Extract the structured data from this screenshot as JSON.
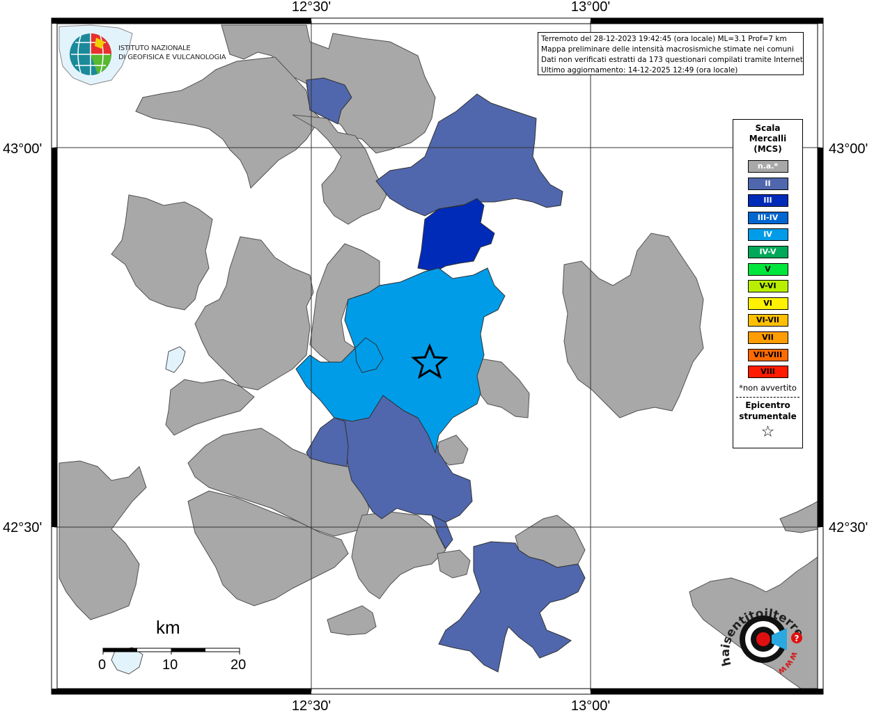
{
  "map": {
    "coords": {
      "lon_a": "12°30'",
      "lon_b": "13°00'",
      "lat_a": "43°00'",
      "lat_b": "42°30'"
    },
    "colors": {
      "na": "#a8a8a8",
      "ii": "#5067ad",
      "iii": "#002bb9",
      "iv": "#009ce8",
      "water": "#e3f3fc"
    },
    "epicenter_icon": "star-icon"
  },
  "info": {
    "line1": "Terremoto del 28-12-2023 19:42:45 (ora locale) ML=3.1 Prof=7 km",
    "line2": "Mappa preliminare delle intensità macrosismiche stimate nei comuni",
    "line3": "Dati non verificati estratti da 173 questionari compilati tramite Internet.",
    "line4": "Ultimo aggiornamento: 14-12-2025 12:49 (ora locale)"
  },
  "legend": {
    "title1": "Scala",
    "title2": "Mercalli",
    "title3": "(MCS)",
    "items": [
      {
        "label": "n.a.*",
        "color": "#a8a8a8",
        "text_color": "#ffffff"
      },
      {
        "label": "II",
        "color": "#5067ad",
        "text_color": "#ffffff"
      },
      {
        "label": "III",
        "color": "#002bb9",
        "text_color": "#ffffff"
      },
      {
        "label": "III-IV",
        "color": "#0066d0",
        "text_color": "#ffffff"
      },
      {
        "label": "IV",
        "color": "#009ce8",
        "text_color": "#ffffff"
      },
      {
        "label": "IV-V",
        "color": "#00a85a",
        "text_color": "#ffffff"
      },
      {
        "label": "V",
        "color": "#00e63c",
        "text_color": "#000000"
      },
      {
        "label": "V-VI",
        "color": "#b8ef00",
        "text_color": "#000000"
      },
      {
        "label": "VI",
        "color": "#fff200",
        "text_color": "#000000"
      },
      {
        "label": "VI-VII",
        "color": "#ffc000",
        "text_color": "#000000"
      },
      {
        "label": "VII",
        "color": "#ff9c00",
        "text_color": "#000000"
      },
      {
        "label": "VII-VIII",
        "color": "#ff6a00",
        "text_color": "#000000"
      },
      {
        "label": "VIII",
        "color": "#ff1c00",
        "text_color": "#000000"
      }
    ],
    "note": "*non avvertito",
    "epi1": "Epicentro",
    "epi2": "strumentale",
    "epi_icon": "☆"
  },
  "ingv": {
    "line1": "ISTITUTO NAZIONALE",
    "line2": "DI GEOFISICA E VULCANOLOGIA"
  },
  "scale": {
    "title": "km",
    "l0": "0",
    "l10": "10",
    "l20": "20"
  },
  "haisentito": {
    "brand": "haisentitoilterremoto.it",
    "www": "www",
    "q": "?"
  }
}
